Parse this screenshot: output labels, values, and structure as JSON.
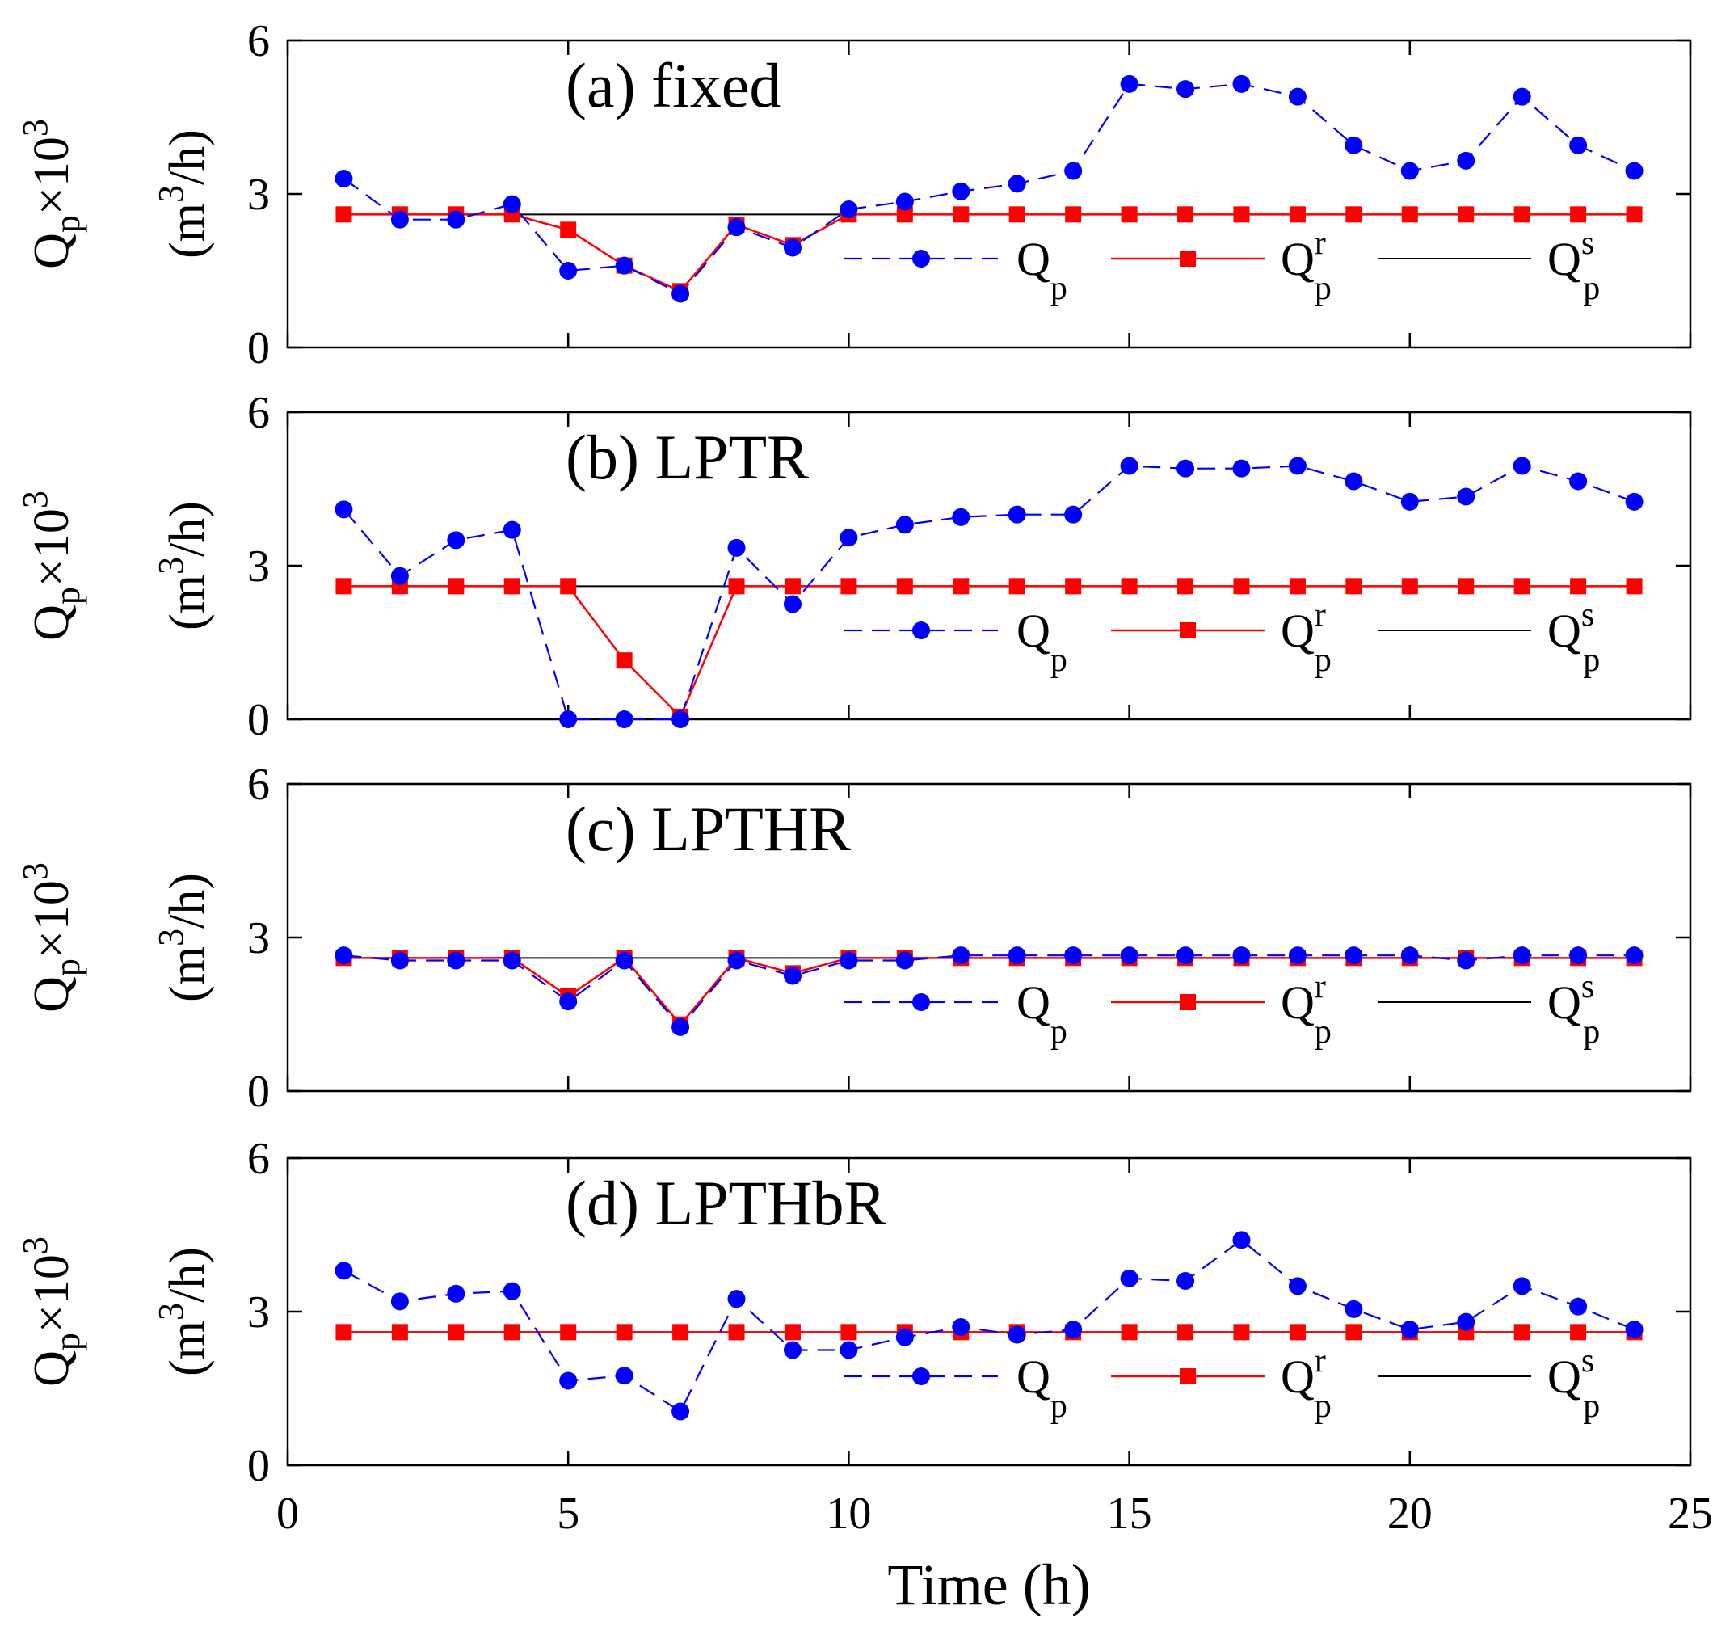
{
  "chart_data": {
    "type": "line",
    "xlabel": "Time (h)",
    "xlim": [
      0,
      25
    ],
    "xticks": [
      "0",
      "5",
      "10",
      "15",
      "20",
      "25"
    ],
    "ylim": [
      0,
      6
    ],
    "yticks": [
      "0",
      "3",
      "6"
    ],
    "ylabel": {
      "line1_base": "Q",
      "line1_sub": "p",
      "line1_times": "×10",
      "line1_sup": "3",
      "line2_open": "(m",
      "line2_sup": "3",
      "line2_close": "/h)"
    },
    "legend": {
      "position": "lower-right",
      "entries": [
        {
          "base": "Q",
          "sub": "p",
          "sup": ""
        },
        {
          "base": "Q",
          "sub": "p",
          "sup": "r"
        },
        {
          "base": "Q",
          "sub": "p",
          "sup": "s"
        }
      ]
    },
    "colors": {
      "qp": "#0000ff",
      "qpr": "#ff0000",
      "qps": "#000000"
    },
    "x": [
      1,
      2,
      3,
      4,
      5,
      6,
      7,
      8,
      9,
      10,
      11,
      12,
      13,
      14,
      15,
      16,
      17,
      18,
      19,
      20,
      21,
      22,
      23,
      24
    ],
    "panels": [
      {
        "title": "(a) fixed",
        "qp": [
          3.3,
          2.5,
          2.5,
          2.8,
          1.5,
          1.6,
          1.05,
          2.35,
          1.95,
          2.7,
          2.85,
          3.05,
          3.2,
          3.45,
          5.15,
          5.05,
          5.15,
          4.9,
          3.95,
          3.45,
          3.65,
          4.9,
          3.95,
          3.45
        ],
        "qpr": [
          2.6,
          2.6,
          2.6,
          2.6,
          2.3,
          1.6,
          1.1,
          2.4,
          2.0,
          2.6,
          2.6,
          2.6,
          2.6,
          2.6,
          2.6,
          2.6,
          2.6,
          2.6,
          2.6,
          2.6,
          2.6,
          2.6,
          2.6,
          2.6
        ],
        "qps": 2.6
      },
      {
        "title": "(b) LPTR",
        "qp": [
          4.1,
          2.8,
          3.5,
          3.7,
          0,
          0,
          0,
          3.35,
          2.25,
          3.55,
          3.8,
          3.95,
          4.0,
          4.0,
          4.95,
          4.9,
          4.9,
          4.95,
          4.65,
          4.25,
          4.35,
          4.95,
          4.65,
          4.25
        ],
        "qpr": [
          2.6,
          2.6,
          2.6,
          2.6,
          2.6,
          1.15,
          0.05,
          2.6,
          2.6,
          2.6,
          2.6,
          2.6,
          2.6,
          2.6,
          2.6,
          2.6,
          2.6,
          2.6,
          2.6,
          2.6,
          2.6,
          2.6,
          2.6,
          2.6
        ],
        "qps": 2.6
      },
      {
        "title": "(c) LPTHR",
        "qp": [
          2.65,
          2.55,
          2.55,
          2.55,
          1.75,
          2.55,
          1.25,
          2.55,
          2.25,
          2.55,
          2.55,
          2.65,
          2.65,
          2.65,
          2.65,
          2.65,
          2.65,
          2.65,
          2.65,
          2.65,
          2.55,
          2.65,
          2.65,
          2.65
        ],
        "qpr": [
          2.6,
          2.6,
          2.6,
          2.6,
          1.85,
          2.6,
          1.3,
          2.6,
          2.3,
          2.6,
          2.6,
          2.6,
          2.6,
          2.6,
          2.6,
          2.6,
          2.6,
          2.6,
          2.6,
          2.6,
          2.6,
          2.6,
          2.6,
          2.6
        ],
        "qps": 2.6
      },
      {
        "title": "(d) LPTHbR",
        "qp": [
          3.8,
          3.2,
          3.35,
          3.4,
          1.65,
          1.75,
          1.05,
          3.25,
          2.25,
          2.25,
          2.5,
          2.7,
          2.55,
          2.65,
          3.65,
          3.6,
          4.4,
          3.5,
          3.05,
          2.65,
          2.8,
          3.5,
          3.1,
          2.65
        ],
        "qpr": [
          2.6,
          2.6,
          2.6,
          2.6,
          2.6,
          2.6,
          2.6,
          2.6,
          2.6,
          2.6,
          2.6,
          2.6,
          2.6,
          2.6,
          2.6,
          2.6,
          2.6,
          2.6,
          2.6,
          2.6,
          2.6,
          2.6,
          2.6,
          2.6
        ],
        "qps": 2.6
      }
    ]
  }
}
